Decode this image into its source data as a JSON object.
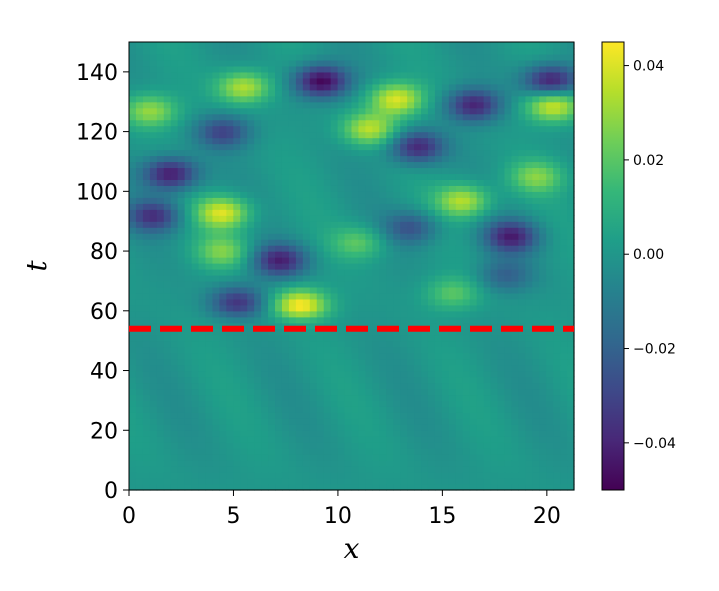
{
  "chart_data": {
    "type": "heatmap",
    "title": "",
    "xlabel": "x",
    "ylabel": "t",
    "xlim": [
      0,
      21.3
    ],
    "ylim": [
      0,
      150
    ],
    "x_ticks": [
      "0",
      "5",
      "10",
      "15",
      "20"
    ],
    "y_ticks": [
      "0",
      "20",
      "40",
      "60",
      "80",
      "100",
      "120",
      "140"
    ],
    "colormap": "viridis",
    "colorbar": {
      "range": [
        -0.05,
        0.045
      ],
      "ticks": [
        "−0.04",
        "−0.02",
        "0.00",
        "0.02",
        "0.04"
      ]
    },
    "cutoff_line": {
      "t": 54,
      "color": "#ff0000",
      "style": "dashed"
    },
    "blobs": [
      {
        "x": 2.0,
        "t": 106,
        "v": -0.045
      },
      {
        "x": 1.2,
        "t": 92,
        "v": -0.035
      },
      {
        "x": 4.5,
        "t": 93,
        "v": 0.04
      },
      {
        "x": 5.5,
        "t": 135,
        "v": 0.035
      },
      {
        "x": 9.2,
        "t": 137,
        "v": -0.05
      },
      {
        "x": 7.2,
        "t": 77,
        "v": -0.04
      },
      {
        "x": 8.2,
        "t": 62,
        "v": 0.045
      },
      {
        "x": 5.2,
        "t": 63,
        "v": -0.035
      },
      {
        "x": 12.8,
        "t": 131,
        "v": 0.04
      },
      {
        "x": 11.5,
        "t": 121,
        "v": 0.035
      },
      {
        "x": 13.8,
        "t": 115,
        "v": -0.04
      },
      {
        "x": 16.5,
        "t": 129,
        "v": -0.04
      },
      {
        "x": 20.2,
        "t": 137,
        "v": -0.045
      },
      {
        "x": 20.3,
        "t": 129,
        "v": 0.04
      },
      {
        "x": 16.0,
        "t": 97,
        "v": 0.035
      },
      {
        "x": 18.3,
        "t": 85,
        "v": -0.04
      },
      {
        "x": 1.0,
        "t": 127,
        "v": 0.03
      },
      {
        "x": 4.5,
        "t": 120,
        "v": -0.03
      },
      {
        "x": 4.5,
        "t": 80,
        "v": 0.025
      },
      {
        "x": 11.0,
        "t": 83,
        "v": 0.02
      },
      {
        "x": 13.5,
        "t": 88,
        "v": -0.025
      },
      {
        "x": 19.5,
        "t": 105,
        "v": 0.025
      },
      {
        "x": 18.0,
        "t": 72,
        "v": -0.02
      },
      {
        "x": 15.5,
        "t": 66,
        "v": 0.02
      }
    ]
  }
}
